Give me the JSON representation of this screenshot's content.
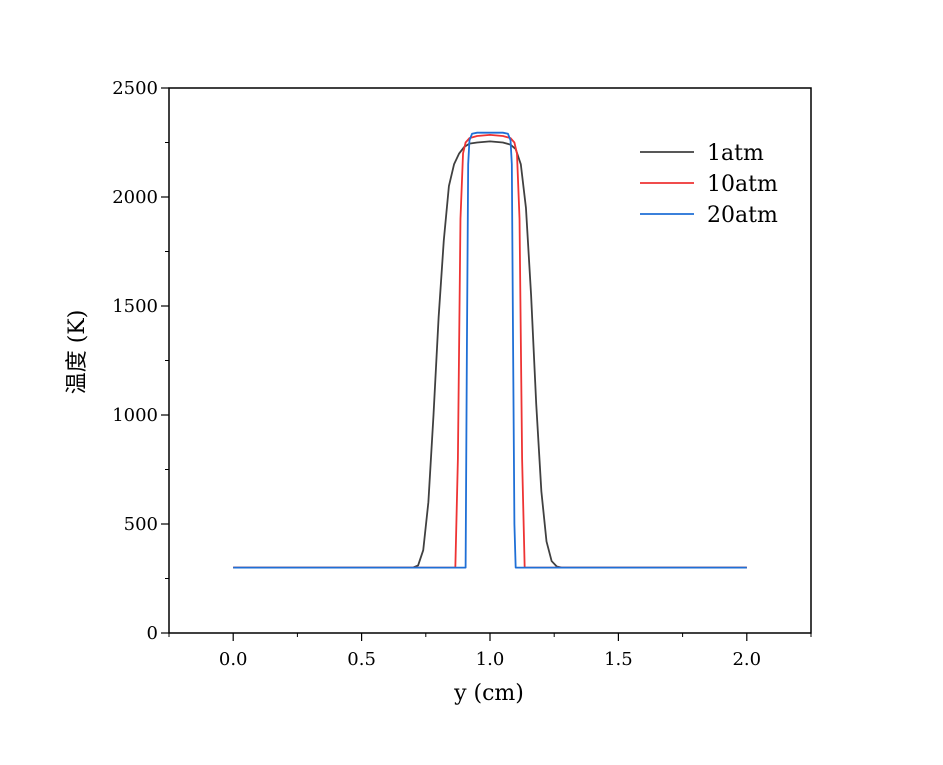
{
  "chart_data": {
    "type": "line",
    "xlabel": "y (cm)",
    "ylabel": "温度 (K)",
    "xlim": [
      -0.25,
      2.25
    ],
    "ylim": [
      0,
      2500
    ],
    "xticks": [
      "0.0",
      "0.5",
      "1.0",
      "1.5",
      "2.0"
    ],
    "xtick_values": [
      0.0,
      0.5,
      1.0,
      1.5,
      2.0
    ],
    "yticks": [
      "0",
      "500",
      "1000",
      "1500",
      "2000",
      "2500"
    ],
    "ytick_values": [
      0,
      500,
      1000,
      1500,
      2000,
      2500
    ],
    "grid": false,
    "legend_position": "top-right",
    "series": [
      {
        "name": "1atm",
        "color": "#404040",
        "x": [
          0.0,
          0.7,
          0.72,
          0.74,
          0.76,
          0.78,
          0.8,
          0.82,
          0.84,
          0.86,
          0.88,
          0.9,
          0.92,
          0.95,
          1.0,
          1.05,
          1.08,
          1.1,
          1.12,
          1.14,
          1.16,
          1.18,
          1.2,
          1.22,
          1.24,
          1.26,
          1.28,
          1.3,
          2.0
        ],
        "y": [
          300,
          300,
          310,
          380,
          600,
          1000,
          1450,
          1800,
          2050,
          2150,
          2200,
          2230,
          2245,
          2250,
          2255,
          2250,
          2240,
          2220,
          2150,
          1950,
          1550,
          1050,
          650,
          420,
          330,
          305,
          300,
          300,
          300
        ]
      },
      {
        "name": "10atm",
        "color": "#ee3333",
        "x": [
          0.0,
          0.865,
          0.875,
          0.885,
          0.895,
          0.905,
          0.92,
          0.95,
          1.0,
          1.05,
          1.08,
          1.095,
          1.105,
          1.115,
          1.125,
          1.135,
          2.0
        ],
        "y": [
          300,
          300,
          800,
          1900,
          2200,
          2250,
          2270,
          2280,
          2285,
          2280,
          2270,
          2250,
          2200,
          1900,
          800,
          300,
          300
        ]
      },
      {
        "name": "20atm",
        "color": "#1f6fd6",
        "x": [
          0.0,
          0.905,
          0.91,
          0.915,
          0.92,
          0.93,
          0.95,
          1.0,
          1.05,
          1.07,
          1.08,
          1.085,
          1.09,
          1.095,
          1.1,
          2.0
        ],
        "y": [
          300,
          300,
          1300,
          2150,
          2260,
          2290,
          2295,
          2295,
          2295,
          2290,
          2260,
          2150,
          1300,
          500,
          300,
          300
        ]
      }
    ]
  }
}
